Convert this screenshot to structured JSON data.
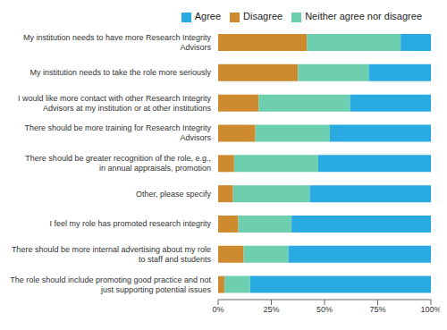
{
  "chart_data": {
    "type": "bar",
    "orientation": "horizontal",
    "stacked": true,
    "legend": "top",
    "grid": false,
    "categories": [
      "My institution needs to have more Research Integrity Advisors",
      "My institution needs to take the role more seriously",
      "I would like more contact with other Research Integrity Advisors at my institution or at other institutions",
      "There should be more training for Research Integrity Advisors",
      "There should be greater recognition of the role, e.g., in annual appraisals, promotion",
      "Other, please specify",
      "I feel my role has promoted research integrity",
      "There should be more internal advertising about my role to staff and students",
      "The role should include promoting good practice and not just supporting potential issues"
    ],
    "series": [
      {
        "name": "Disagree",
        "color": "#cd8a2f",
        "values": [
          41.7,
          37.5,
          19,
          17.5,
          7.5,
          7,
          9.5,
          12,
          3
        ]
      },
      {
        "name": "Neither agree nor disagree",
        "color": "#6ecfb0",
        "values": [
          44.1,
          33.3,
          43,
          35,
          39.5,
          36,
          25,
          21,
          12
        ]
      },
      {
        "name": "Agree",
        "color": "#29abe2",
        "values": [
          14.2,
          29.2,
          38,
          47.5,
          53,
          57,
          65.5,
          67,
          85
        ]
      }
    ],
    "xlim": [
      0,
      100
    ],
    "xticks": [
      {
        "value": 0,
        "label": "0%"
      },
      {
        "value": 25,
        "label": "25%"
      },
      {
        "value": 50,
        "label": "50%"
      },
      {
        "value": 75,
        "label": "75%"
      },
      {
        "value": 100,
        "label": "100%"
      }
    ]
  }
}
